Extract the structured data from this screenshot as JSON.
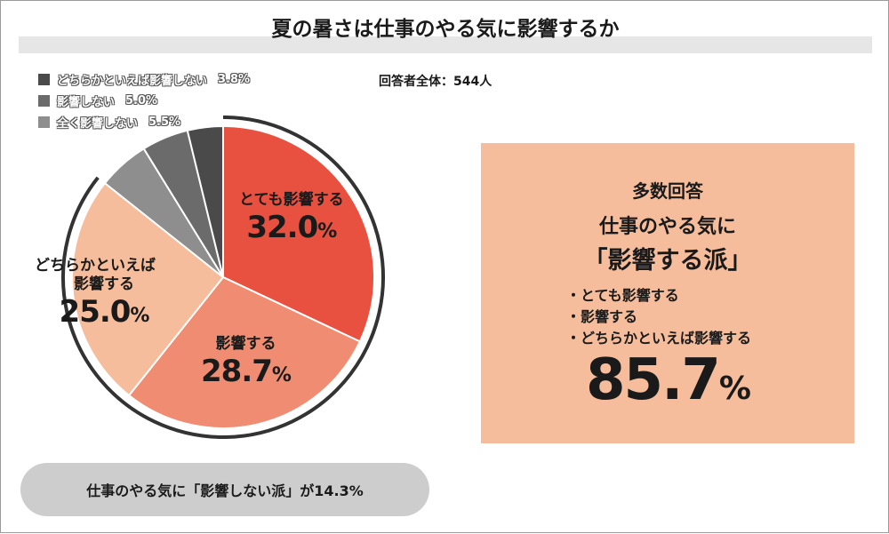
{
  "title": "夏の暑さは仕事のやる気に影響するか",
  "respondents": "回答者全体：544人",
  "chart_data": {
    "type": "pie",
    "slices": [
      {
        "label": "とても影響する",
        "value": 32.0,
        "value_text": "32.0",
        "color": "#e85040"
      },
      {
        "label": "影響する",
        "value": 28.7,
        "value_text": "28.7",
        "color": "#ef8c72"
      },
      {
        "label": "どちらかといえば影響する",
        "label_lines": [
          "どちらかといえば",
          "影響する"
        ],
        "value": 25.0,
        "value_text": "25.0",
        "color": "#f5bd9c"
      },
      {
        "label": "全く影響しない",
        "value": 5.5,
        "value_text": "5.5%",
        "color": "#8e8e8e"
      },
      {
        "label": "影響しない",
        "value": 5.0,
        "value_text": "5.0%",
        "color": "#6b6b6b"
      },
      {
        "label": "どちらかといえば影響しない",
        "value": 3.8,
        "value_text": "3.8%",
        "color": "#4a4a4a"
      }
    ],
    "percent_sign": "%",
    "legend": [
      {
        "label": "どちらかといえば影響しない",
        "value_text": "3.8%",
        "color": "#4a4a4a"
      },
      {
        "label": "影響しない",
        "value_text": "5.0%",
        "color": "#6b6b6b"
      },
      {
        "label": "全く影響しない",
        "value_text": "5.5%",
        "color": "#8e8e8e"
      }
    ],
    "legend_position": "top-left"
  },
  "panel": {
    "heading": "多数回答",
    "line1": "仕事のやる気に",
    "line2": "「影響する派」",
    "items": [
      "・とても影響する",
      "・影響する",
      "・どちらかといえば影響する"
    ],
    "total": "85.7",
    "total_unit": "%",
    "background": "#f5bd9c"
  },
  "footer": {
    "text": "仕事のやる気に「影響しない派」が14.3%"
  }
}
